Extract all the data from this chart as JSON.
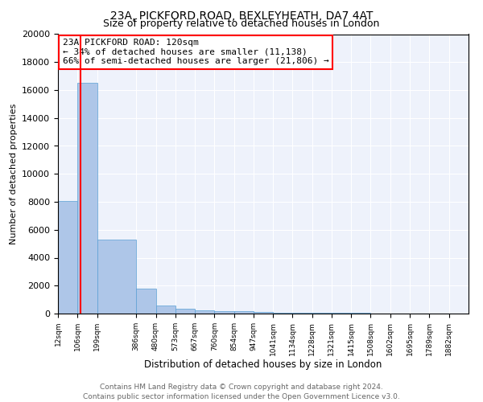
{
  "title": "23A, PICKFORD ROAD, BEXLEYHEATH, DA7 4AT",
  "subtitle": "Size of property relative to detached houses in London",
  "xlabel": "Distribution of detached houses by size in London",
  "ylabel": "Number of detached properties",
  "bar_edges": [
    12,
    106,
    199,
    386,
    480,
    573,
    667,
    760,
    854,
    947,
    1041,
    1134,
    1228,
    1321,
    1415,
    1508,
    1602,
    1695,
    1789,
    1882,
    1976
  ],
  "bar_heights": [
    8050,
    16500,
    5300,
    1800,
    600,
    350,
    250,
    200,
    150,
    100,
    80,
    60,
    50,
    40,
    30,
    20,
    15,
    10,
    8,
    5
  ],
  "bar_color": "#aec6e8",
  "bar_edgecolor": "#5a9fd4",
  "bar_linewidth": 0.5,
  "red_line_x": 120,
  "annotation_text": "23A PICKFORD ROAD: 120sqm\n← 34% of detached houses are smaller (11,138)\n66% of semi-detached houses are larger (21,806) →",
  "ylim": [
    0,
    20000
  ],
  "yticks": [
    0,
    2000,
    4000,
    6000,
    8000,
    10000,
    12000,
    14000,
    16000,
    18000,
    20000
  ],
  "background_color": "#eef2fb",
  "grid_color": "white",
  "footer_line1": "Contains HM Land Registry data © Crown copyright and database right 2024.",
  "footer_line2": "Contains public sector information licensed under the Open Government Licence v3.0.",
  "title_fontsize": 10,
  "subtitle_fontsize": 9,
  "annotation_fontsize": 8,
  "ylabel_fontsize": 8,
  "xlabel_fontsize": 8.5
}
